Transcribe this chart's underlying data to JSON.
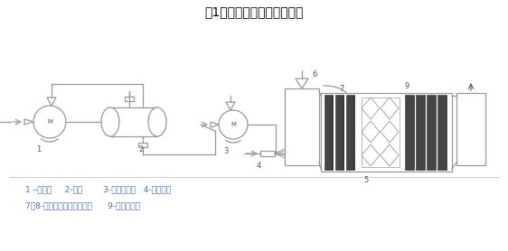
{
  "title": "图1：直喷氨脱硝系统工艺图",
  "title_fontsize": 10,
  "legend_line1": "1 –卸氨泵     2-氨罐        3-氨水输送泵   4-氨水喷枪",
  "legend_line2": "7、8-冷却和雾化冷却风系统      9-催化剂模块",
  "bg_color": "#ffffff",
  "line_color": "#999999",
  "dark_color": "#555555",
  "text_color": "#4472c4",
  "label_color": "#555555"
}
